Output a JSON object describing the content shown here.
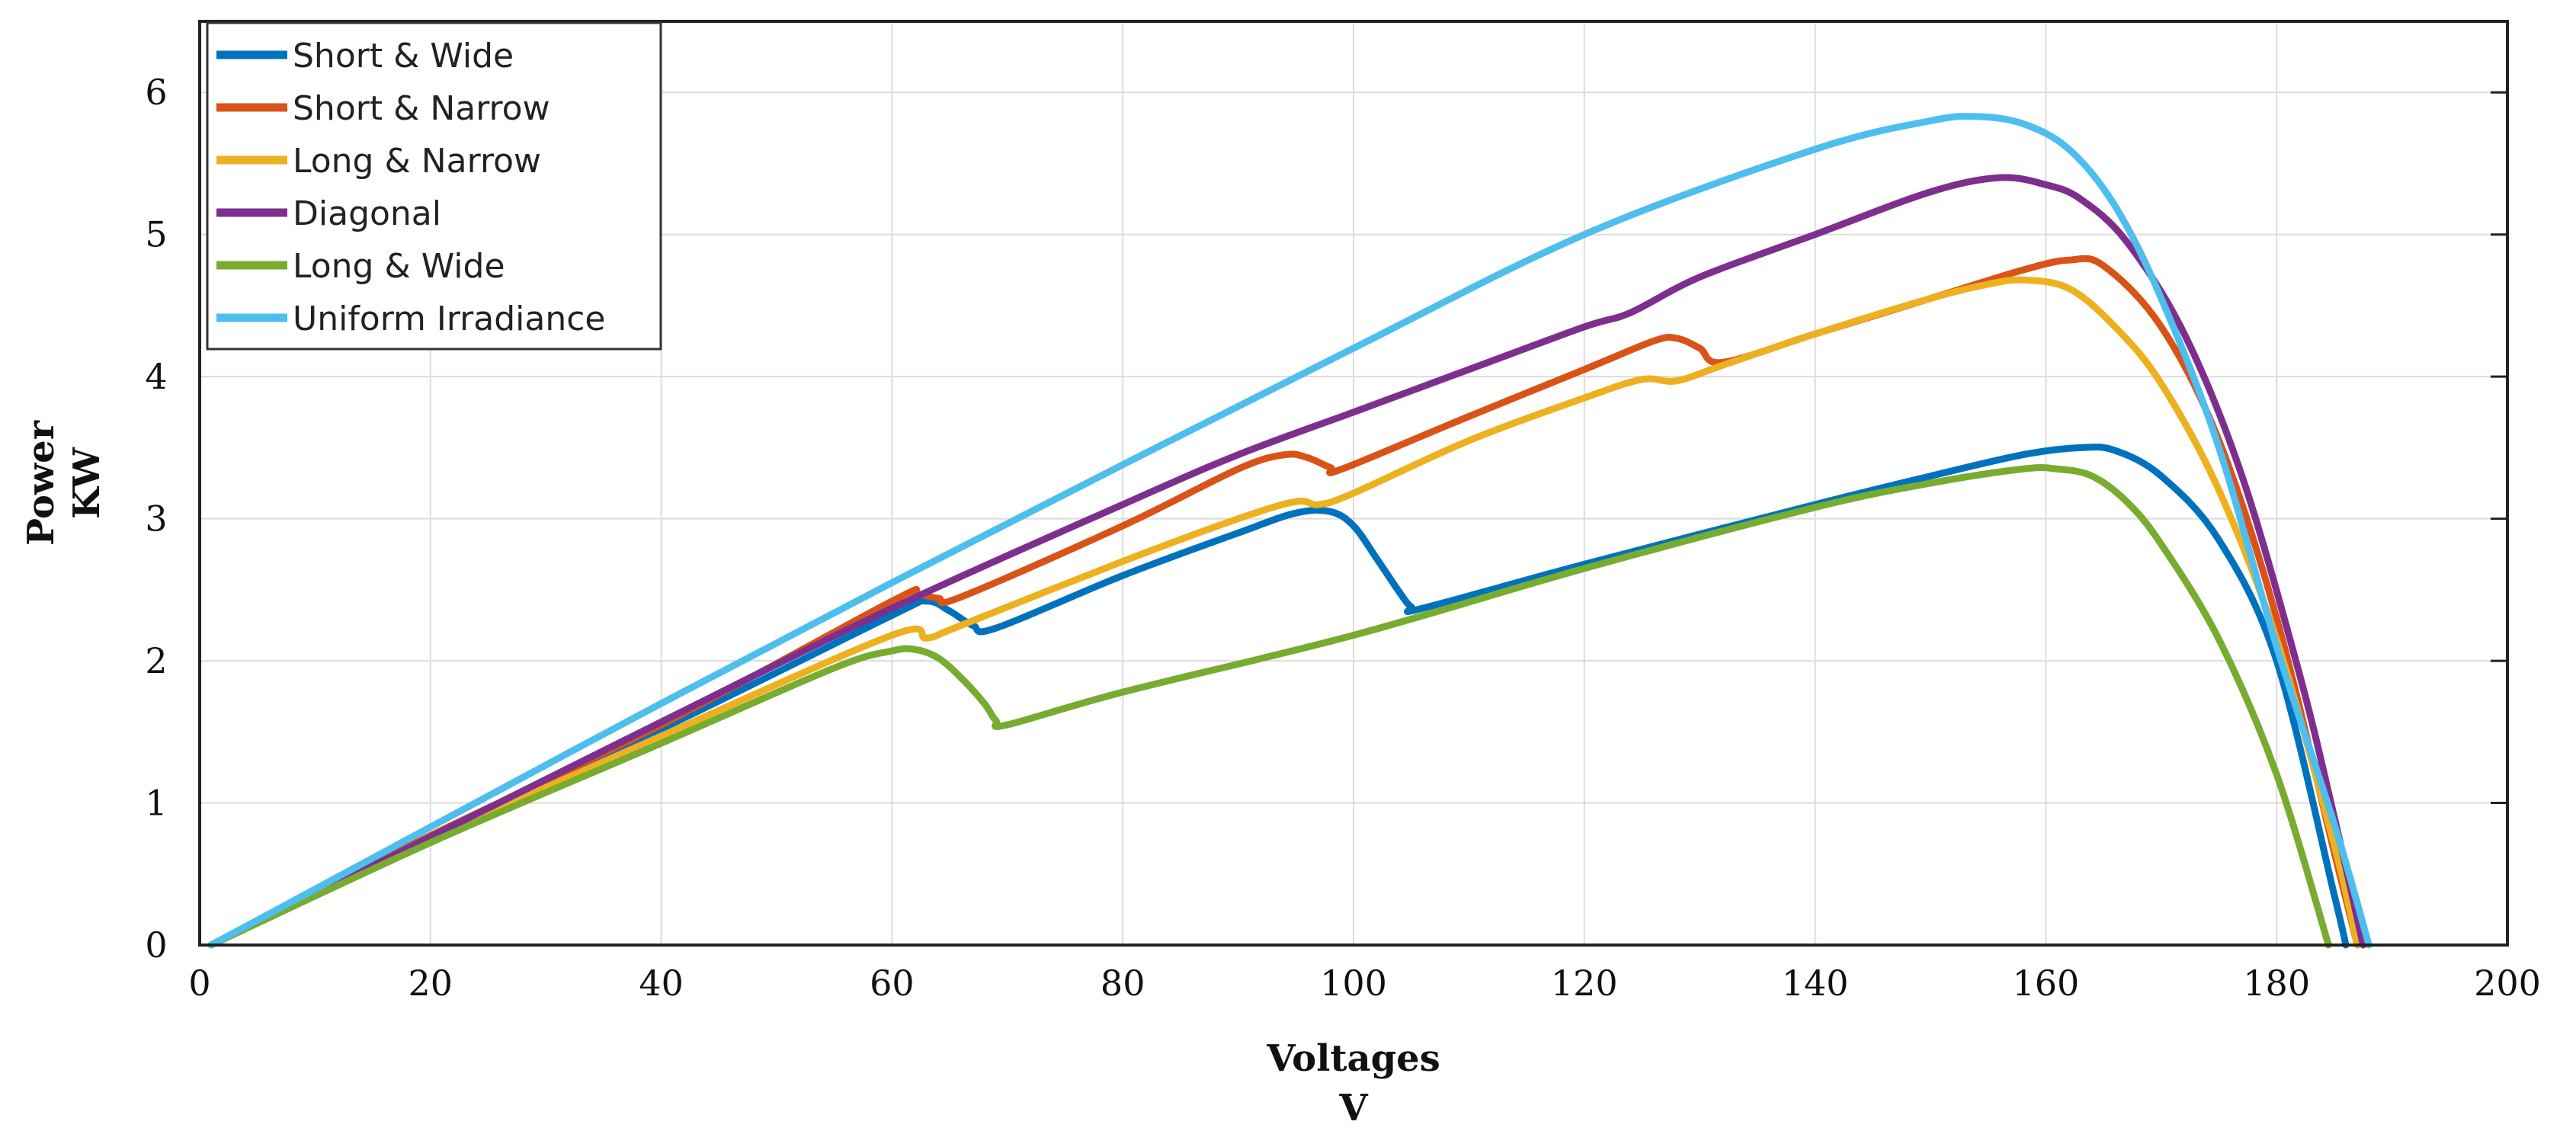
{
  "chart_data": {
    "type": "line",
    "xlabel_line1": "Voltages",
    "xlabel_line2": "V",
    "ylabel_line1": "Power",
    "ylabel_line2": "KW",
    "xlim": [
      0,
      200
    ],
    "ylim": [
      0,
      6.5
    ],
    "x_ticks": [
      0,
      20,
      40,
      60,
      80,
      100,
      120,
      140,
      160,
      180,
      200
    ],
    "x_tick_labels": [
      "0",
      "20",
      "40",
      "60",
      "80",
      "100",
      "120",
      "140",
      "160",
      "180",
      "200"
    ],
    "y_ticks": [
      0,
      1,
      2,
      3,
      4,
      5,
      6
    ],
    "y_tick_labels": [
      "0",
      "1",
      "2",
      "3",
      "4",
      "5",
      "6"
    ],
    "grid": true,
    "legend_position": "top-left",
    "series": [
      {
        "name": "Short & Wide",
        "color": "#0072BD",
        "points": [
          [
            1,
            0
          ],
          [
            20,
            0.77
          ],
          [
            40,
            1.52
          ],
          [
            60,
            2.32
          ],
          [
            63,
            2.42
          ],
          [
            65,
            2.35
          ],
          [
            67,
            2.25
          ],
          [
            69,
            2.23
          ],
          [
            80,
            2.6
          ],
          [
            90,
            2.9
          ],
          [
            95,
            3.04
          ],
          [
            98,
            3.05
          ],
          [
            100,
            2.95
          ],
          [
            102,
            2.72
          ],
          [
            104,
            2.48
          ],
          [
            105,
            2.38
          ],
          [
            106,
            2.37
          ],
          [
            120,
            2.68
          ],
          [
            140,
            3.1
          ],
          [
            150,
            3.3
          ],
          [
            158,
            3.45
          ],
          [
            163,
            3.5
          ],
          [
            166,
            3.48
          ],
          [
            170,
            3.3
          ],
          [
            175,
            2.85
          ],
          [
            180,
            2.0
          ],
          [
            185,
            0.35
          ],
          [
            186,
            0
          ]
        ]
      },
      {
        "name": "Short & Narrow",
        "color": "#D95319",
        "points": [
          [
            1,
            0
          ],
          [
            20,
            0.77
          ],
          [
            40,
            1.55
          ],
          [
            60,
            2.42
          ],
          [
            62,
            2.47
          ],
          [
            64,
            2.44
          ],
          [
            66,
            2.45
          ],
          [
            80,
            2.95
          ],
          [
            90,
            3.35
          ],
          [
            94,
            3.45
          ],
          [
            96,
            3.43
          ],
          [
            98,
            3.36
          ],
          [
            99,
            3.35
          ],
          [
            110,
            3.72
          ],
          [
            120,
            4.05
          ],
          [
            126,
            4.25
          ],
          [
            128,
            4.27
          ],
          [
            130,
            4.2
          ],
          [
            132,
            4.1
          ],
          [
            140,
            4.3
          ],
          [
            150,
            4.55
          ],
          [
            158,
            4.75
          ],
          [
            162,
            4.82
          ],
          [
            165,
            4.78
          ],
          [
            170,
            4.35
          ],
          [
            175,
            3.55
          ],
          [
            180,
            2.3
          ],
          [
            185,
            0.65
          ],
          [
            187,
            0
          ]
        ]
      },
      {
        "name": "Long & Narrow",
        "color": "#EDB120",
        "points": [
          [
            1,
            0
          ],
          [
            20,
            0.74
          ],
          [
            40,
            1.47
          ],
          [
            60,
            2.18
          ],
          [
            63,
            2.16
          ],
          [
            66,
            2.25
          ],
          [
            80,
            2.7
          ],
          [
            90,
            3.0
          ],
          [
            95,
            3.12
          ],
          [
            97,
            3.1
          ],
          [
            100,
            3.18
          ],
          [
            110,
            3.55
          ],
          [
            120,
            3.85
          ],
          [
            125,
            3.98
          ],
          [
            128,
            3.97
          ],
          [
            132,
            4.08
          ],
          [
            140,
            4.3
          ],
          [
            150,
            4.55
          ],
          [
            155,
            4.65
          ],
          [
            158,
            4.68
          ],
          [
            162,
            4.62
          ],
          [
            166,
            4.35
          ],
          [
            170,
            3.95
          ],
          [
            175,
            3.2
          ],
          [
            180,
            2.15
          ],
          [
            185,
            0.7
          ],
          [
            187,
            0
          ]
        ]
      },
      {
        "name": "Diagonal",
        "color": "#7E2F8E",
        "points": [
          [
            1,
            0
          ],
          [
            20,
            0.76
          ],
          [
            40,
            1.57
          ],
          [
            60,
            2.37
          ],
          [
            80,
            3.1
          ],
          [
            90,
            3.45
          ],
          [
            100,
            3.75
          ],
          [
            110,
            4.05
          ],
          [
            120,
            4.35
          ],
          [
            124,
            4.45
          ],
          [
            130,
            4.7
          ],
          [
            140,
            5.0
          ],
          [
            150,
            5.3
          ],
          [
            156,
            5.4
          ],
          [
            160,
            5.35
          ],
          [
            163,
            5.25
          ],
          [
            167,
            4.95
          ],
          [
            172,
            4.3
          ],
          [
            177,
            3.3
          ],
          [
            182,
            1.9
          ],
          [
            185,
            0.9
          ],
          [
            187.5,
            0
          ]
        ]
      },
      {
        "name": "Long & Wide",
        "color": "#77AC30",
        "points": [
          [
            1,
            0
          ],
          [
            20,
            0.72
          ],
          [
            40,
            1.42
          ],
          [
            55,
            1.95
          ],
          [
            60,
            2.07
          ],
          [
            62,
            2.08
          ],
          [
            64,
            2.02
          ],
          [
            66,
            1.88
          ],
          [
            68,
            1.7
          ],
          [
            69,
            1.58
          ],
          [
            70,
            1.55
          ],
          [
            80,
            1.78
          ],
          [
            100,
            2.18
          ],
          [
            120,
            2.65
          ],
          [
            140,
            3.08
          ],
          [
            150,
            3.25
          ],
          [
            158,
            3.35
          ],
          [
            161,
            3.35
          ],
          [
            164,
            3.3
          ],
          [
            167,
            3.12
          ],
          [
            170,
            2.82
          ],
          [
            175,
            2.15
          ],
          [
            180,
            1.2
          ],
          [
            184.5,
            0
          ]
        ]
      },
      {
        "name": "Uniform Irradiance",
        "color": "#4DBEEE",
        "points": [
          [
            1,
            0
          ],
          [
            20,
            0.83
          ],
          [
            40,
            1.7
          ],
          [
            60,
            2.55
          ],
          [
            80,
            3.38
          ],
          [
            100,
            4.2
          ],
          [
            120,
            5.0
          ],
          [
            140,
            5.6
          ],
          [
            150,
            5.8
          ],
          [
            154,
            5.83
          ],
          [
            158,
            5.78
          ],
          [
            162,
            5.6
          ],
          [
            166,
            5.2
          ],
          [
            170,
            4.55
          ],
          [
            175,
            3.5
          ],
          [
            180,
            2.1
          ],
          [
            185,
            0.85
          ],
          [
            188,
            0
          ]
        ]
      }
    ]
  }
}
